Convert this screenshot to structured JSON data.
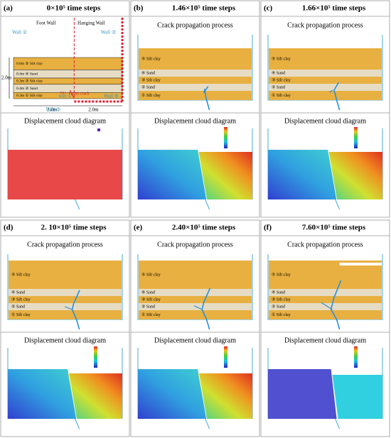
{
  "figure": {
    "panels": [
      {
        "label": "(a)",
        "steps": "0×10⁵ time steps",
        "bottom_title": "Displacement cloud diagram"
      },
      {
        "label": "(b)",
        "steps": "1.46×10⁵ time steps",
        "top_title": "Crack propagation process",
        "bottom_title": "Displacement cloud diagram"
      },
      {
        "label": "(c)",
        "steps": "1.66×10⁵ time steps",
        "top_title": "Crack propagation process",
        "bottom_title": "Displacement cloud diagram"
      },
      {
        "label": "(d)",
        "steps": "2. 10×10⁵ time steps",
        "top_title": "Crack propagation process",
        "bottom_title": "Displacement cloud diagram"
      },
      {
        "label": "(e)",
        "steps": "2.40×10⁵ time steps",
        "top_title": "Crack propagation process",
        "bottom_title": "Displacement cloud diagram"
      },
      {
        "label": "(f)",
        "steps": "7.60×10⁵ time steps",
        "top_title": "Crack propagation process",
        "bottom_title": "Displacement cloud diagram"
      }
    ],
    "layer_labels": [
      "⑤ Silt clay",
      "④ Sand",
      "③ Silt clay",
      "② Sand",
      "① Silt clay"
    ],
    "schematic": {
      "foot_wall": "Foot Wall",
      "hanging_wall": "Hanging Wall",
      "wall_left": "Wall ②",
      "wall_right": "Wall ③",
      "wall_bottom": "Wall ⑤",
      "wall_bottom_right": "Wall ④",
      "wall_inner": "Wall ①",
      "height": "2.0m",
      "width_left": "3.0m",
      "width_right": "2.0m",
      "layers": [
        "0.6m ⑤ Silt clay",
        "0.4m ④ Sand",
        "0.3m ③ Silt clay",
        "0.4m ② Sand",
        "0.3m ① Silt clay"
      ],
      "angle": "75°",
      "crack": "Preset crack"
    }
  }
}
